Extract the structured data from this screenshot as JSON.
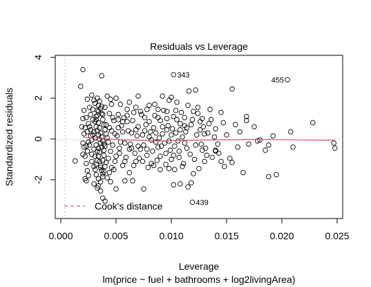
{
  "chart_data": {
    "type": "scatter",
    "title": "Residuals vs Leverage",
    "xlabel": "Leverage",
    "ylabel": "Standardized residuals",
    "sublabel": "lm(price ~ fuel + bathrooms + log2livingArea)",
    "xlim": [
      -0.0005,
      0.0255
    ],
    "ylim": [
      -3.9,
      4.1
    ],
    "x_ticks": [
      0.0,
      0.005,
      0.01,
      0.015,
      0.02,
      0.025
    ],
    "x_tick_labels": [
      "0.000",
      "0.005",
      "0.010",
      "0.015",
      "0.020",
      "0.025"
    ],
    "y_ticks": [
      -2,
      0,
      2,
      4
    ],
    "y_tick_labels": [
      "-2",
      "0",
      "2",
      "4"
    ],
    "grid": false,
    "legend": {
      "position": "bottom-left",
      "entries": [
        {
          "label": "Cook's distance",
          "color": "#DF536B",
          "style": "dashed"
        }
      ]
    },
    "smooth_color": "#DF536B",
    "smooth_line": [
      [
        0.002,
        0.08
      ],
      [
        0.0035,
        0.03
      ],
      [
        0.006,
        -0.05
      ],
      [
        0.009,
        -0.1
      ],
      [
        0.013,
        -0.05
      ],
      [
        0.018,
        -0.02
      ],
      [
        0.0248,
        -0.07
      ]
    ],
    "labeled_points": [
      {
        "label": "343",
        "x": 0.0102,
        "y": 3.15
      },
      {
        "label": "455",
        "x": 0.0205,
        "y": 2.9
      },
      {
        "label": "439",
        "x": 0.0119,
        "y": -3.1
      }
    ],
    "points": [
      [
        0.0102,
        3.15
      ],
      [
        0.0205,
        2.9
      ],
      [
        0.0119,
        -3.1
      ],
      [
        0.002,
        3.4
      ],
      [
        0.0037,
        3.1
      ],
      [
        0.0018,
        2.58
      ],
      [
        0.0024,
        1.95
      ],
      [
        0.0013,
        -1.08
      ],
      [
        0.0022,
        -1.95
      ],
      [
        0.0023,
        -2.05
      ],
      [
        0.0038,
        -2.9
      ],
      [
        0.004,
        -3.05
      ],
      [
        0.0116,
        2.35
      ],
      [
        0.0122,
        2.4
      ],
      [
        0.0145,
        1.3
      ],
      [
        0.0168,
        1.1
      ],
      [
        0.0155,
        2.45
      ],
      [
        0.017,
        -0.25
      ],
      [
        0.0178,
        -0.1
      ],
      [
        0.0185,
        -0.55
      ],
      [
        0.0188,
        -0.3
      ],
      [
        0.0192,
        0.15
      ],
      [
        0.0208,
        0.35
      ],
      [
        0.0228,
        0.8
      ],
      [
        0.0247,
        -0.2
      ],
      [
        0.0248,
        -0.45
      ],
      [
        0.021,
        -0.4
      ],
      [
        0.0165,
        -1.65
      ],
      [
        0.0195,
        -1.75
      ],
      [
        0.0188,
        -1.85
      ],
      [
        0.0155,
        -1.15
      ],
      [
        0.0145,
        -1.1
      ],
      [
        0.014,
        -0.55
      ],
      [
        0.014,
        -0.6
      ],
      [
        0.0128,
        -0.55
      ],
      [
        0.0132,
        -0.8
      ],
      [
        0.013,
        -1.1
      ],
      [
        0.0125,
        -1.45
      ],
      [
        0.012,
        -1.7
      ],
      [
        0.0118,
        -2.15
      ],
      [
        0.0115,
        -2.35
      ],
      [
        0.0108,
        -2.2
      ],
      [
        0.0102,
        -2.25
      ],
      [
        0.009,
        -1.5
      ],
      [
        0.0075,
        -2.45
      ],
      [
        0.0065,
        -2.05
      ],
      [
        0.0135,
        1.45
      ],
      [
        0.014,
        0.5
      ],
      [
        0.0147,
        0.8
      ],
      [
        0.0128,
        1.0
      ],
      [
        0.0133,
        0.3
      ],
      [
        0.0168,
        0.9
      ],
      [
        0.0105,
        1.8
      ],
      [
        0.0098,
        1.9
      ],
      [
        0.0092,
        2.1
      ],
      [
        0.0085,
        1.7
      ],
      [
        0.008,
        1.65
      ],
      [
        0.007,
        2.1
      ],
      [
        0.0062,
        1.8
      ],
      [
        0.0054,
        1.7
      ],
      [
        0.005,
        2.0
      ],
      [
        0.0045,
        1.95
      ],
      [
        0.0042,
        2.1
      ],
      [
        0.0033,
        2.0
      ],
      [
        0.0031,
        1.75
      ],
      [
        0.003,
        1.9
      ],
      [
        0.0028,
        2.15
      ],
      [
        0.0026,
        1.55
      ],
      [
        0.0021,
        1.4
      ],
      [
        0.002,
        1.0
      ],
      [
        0.0019,
        0.6
      ],
      [
        0.0021,
        -0.4
      ],
      [
        0.002,
        -0.75
      ],
      [
        0.0023,
        -1.2
      ],
      [
        0.0024,
        -1.55
      ],
      [
        0.0025,
        -1.8
      ],
      [
        0.003,
        -2.2
      ],
      [
        0.0033,
        -2.4
      ],
      [
        0.0036,
        -2.55
      ],
      [
        0.0034,
        -2.3
      ],
      [
        0.0045,
        -2.1
      ],
      [
        0.005,
        -2.45
      ],
      [
        0.0058,
        -2.05
      ],
      [
        0.0062,
        -1.65
      ],
      [
        0.0056,
        -1.3
      ],
      [
        0.0048,
        -1.5
      ],
      [
        0.0068,
        -1.1
      ],
      [
        0.0072,
        -0.5
      ],
      [
        0.0078,
        -0.8
      ],
      [
        0.0082,
        -1.2
      ],
      [
        0.0088,
        -0.4
      ],
      [
        0.0095,
        -0.7
      ],
      [
        0.01,
        -1.0
      ],
      [
        0.0103,
        -0.35
      ],
      [
        0.0107,
        -0.6
      ],
      [
        0.0112,
        -0.2
      ],
      [
        0.0113,
        0.35
      ],
      [
        0.0108,
        0.75
      ],
      [
        0.0102,
        1.1
      ],
      [
        0.0096,
        0.45
      ],
      [
        0.009,
        0.9
      ],
      [
        0.0084,
        0.55
      ],
      [
        0.0076,
        1.05
      ],
      [
        0.007,
        0.6
      ],
      [
        0.0066,
        1.3
      ],
      [
        0.006,
        0.85
      ],
      [
        0.0056,
        0.35
      ],
      [
        0.0052,
        0.95
      ],
      [
        0.0046,
        0.4
      ],
      [
        0.0044,
        1.25
      ],
      [
        0.0041,
        0.7
      ],
      [
        0.0039,
        -0.55
      ],
      [
        0.0043,
        -0.95
      ],
      [
        0.0047,
        -0.3
      ],
      [
        0.0053,
        -0.7
      ],
      [
        0.0058,
        -0.2
      ],
      [
        0.0064,
        -0.45
      ],
      [
        0.0074,
        0.2
      ],
      [
        0.008,
        0.1
      ],
      [
        0.0086,
        -0.15
      ],
      [
        0.0092,
        0.25
      ],
      [
        0.0098,
        -0.1
      ],
      [
        0.0104,
        0.3
      ],
      [
        0.011,
        0.1
      ],
      [
        0.0118,
        0.7
      ],
      [
        0.0122,
        -0.3
      ],
      [
        0.0126,
        0.45
      ],
      [
        0.012,
        1.35
      ],
      [
        0.0115,
        1.65
      ],
      [
        0.0112,
        1.05
      ],
      [
        0.0136,
        0.95
      ],
      [
        0.0142,
        -0.25
      ],
      [
        0.015,
        0.2
      ],
      [
        0.016,
        -0.4
      ],
      [
        0.0175,
        0.6
      ],
      [
        0.0158,
        0.7
      ],
      [
        0.0148,
        -1.35
      ],
      [
        0.0126,
        0.85
      ],
      [
        0.0124,
        1.25
      ],
      [
        0.0124,
        1.55
      ],
      [
        0.013,
        0.25
      ],
      [
        0.01,
        2.05
      ],
      [
        0.0096,
        1.35
      ],
      [
        0.0088,
        1.45
      ],
      [
        0.0078,
        1.45
      ],
      [
        0.0068,
        1.55
      ],
      [
        0.006,
        1.45
      ],
      [
        0.0052,
        1.2
      ],
      [
        0.0048,
        0.9
      ],
      [
        0.004,
        1.55
      ],
      [
        0.0038,
        1.2
      ],
      [
        0.0034,
        1.65
      ],
      [
        0.0033,
        1.4
      ],
      [
        0.0032,
        1.1
      ],
      [
        0.0031,
        0.85
      ],
      [
        0.0032,
        0.6
      ],
      [
        0.0033,
        0.4
      ],
      [
        0.0034,
        0.2
      ],
      [
        0.0035,
        0.0
      ],
      [
        0.0036,
        -0.2
      ],
      [
        0.0037,
        -0.4
      ],
      [
        0.0035,
        -0.65
      ],
      [
        0.0034,
        -0.85
      ],
      [
        0.0033,
        -1.05
      ],
      [
        0.0032,
        -1.25
      ],
      [
        0.0031,
        -1.5
      ],
      [
        0.0032,
        -1.75
      ],
      [
        0.0034,
        -1.95
      ],
      [
        0.0036,
        -2.1
      ],
      [
        0.0038,
        -1.85
      ],
      [
        0.0039,
        -1.6
      ],
      [
        0.004,
        -1.35
      ],
      [
        0.0041,
        -1.15
      ],
      [
        0.0036,
        -1.3
      ],
      [
        0.0037,
        -1.55
      ],
      [
        0.0035,
        1.85
      ],
      [
        0.0036,
        1.5
      ],
      [
        0.0037,
        1.25
      ],
      [
        0.0038,
        0.95
      ],
      [
        0.0039,
        0.7
      ],
      [
        0.004,
        0.45
      ],
      [
        0.0041,
        0.25
      ],
      [
        0.0042,
        0.05
      ],
      [
        0.0043,
        -0.15
      ],
      [
        0.004,
        -0.35
      ],
      [
        0.0039,
        -0.8
      ],
      [
        0.0038,
        -1.05
      ],
      [
        0.0029,
        0.2
      ],
      [
        0.0028,
        -0.05
      ],
      [
        0.0027,
        0.45
      ],
      [
        0.0026,
        -0.3
      ],
      [
        0.0025,
        0.75
      ],
      [
        0.0024,
        -0.6
      ],
      [
        0.0023,
        1.05
      ],
      [
        0.0022,
        -0.85
      ],
      [
        0.0027,
        1.2
      ],
      [
        0.0028,
        -1.1
      ],
      [
        0.0029,
        1.45
      ],
      [
        0.003,
        -1.35
      ],
      [
        0.0029,
        0.95
      ],
      [
        0.0028,
        -0.75
      ],
      [
        0.0027,
        0.15
      ],
      [
        0.0026,
        0.6
      ],
      [
        0.0025,
        -0.15
      ],
      [
        0.0024,
        0.35
      ],
      [
        0.0023,
        -0.35
      ],
      [
        0.0022,
        0.55
      ],
      [
        0.0021,
        0.25
      ],
      [
        0.002,
        -0.2
      ],
      [
        0.0046,
        1.7
      ],
      [
        0.0049,
        -1.1
      ],
      [
        0.0051,
        0.15
      ],
      [
        0.0053,
        -0.45
      ],
      [
        0.0055,
        0.65
      ],
      [
        0.0057,
        1.05
      ],
      [
        0.0059,
        -0.9
      ],
      [
        0.0061,
        0.4
      ],
      [
        0.0063,
        -0.25
      ],
      [
        0.0065,
        0.9
      ],
      [
        0.0067,
        -0.7
      ],
      [
        0.0069,
        0.15
      ],
      [
        0.0071,
        -0.95
      ],
      [
        0.0073,
        1.2
      ],
      [
        0.0075,
        -0.3
      ],
      [
        0.0077,
        0.7
      ],
      [
        0.0079,
        -1.4
      ],
      [
        0.0081,
        0.35
      ],
      [
        0.0083,
        -0.6
      ],
      [
        0.0085,
        1.15
      ],
      [
        0.0087,
        -1.05
      ],
      [
        0.0089,
        0.05
      ],
      [
        0.0091,
        -0.35
      ],
      [
        0.0093,
        1.4
      ],
      [
        0.0095,
        -1.25
      ],
      [
        0.0097,
        0.65
      ],
      [
        0.0099,
        -0.55
      ],
      [
        0.0101,
        0.5
      ],
      [
        0.0103,
        -1.5
      ],
      [
        0.0105,
        0.95
      ],
      [
        0.0107,
        -0.9
      ],
      [
        0.0109,
        1.3
      ],
      [
        0.0111,
        -1.2
      ],
      [
        0.0114,
        0.55
      ],
      [
        0.0117,
        -0.75
      ],
      [
        0.0119,
        0.95
      ],
      [
        0.0121,
        -1.0
      ],
      [
        0.0123,
        0.2
      ],
      [
        0.0127,
        -0.25
      ],
      [
        0.0129,
        0.6
      ],
      [
        0.0131,
        -0.45
      ],
      [
        0.0134,
        0.75
      ],
      [
        0.0137,
        -0.9
      ],
      [
        0.0139,
        0.1
      ],
      [
        0.0143,
        -0.7
      ],
      [
        0.0153,
        -0.95
      ],
      [
        0.0162,
        0.35
      ],
      [
        0.018,
        -0.05
      ],
      [
        0.0034,
        0.8
      ],
      [
        0.0035,
        0.55
      ],
      [
        0.0036,
        0.3
      ],
      [
        0.0037,
        0.1
      ],
      [
        0.0038,
        -0.1
      ],
      [
        0.0039,
        -0.25
      ],
      [
        0.0034,
        -0.45
      ],
      [
        0.0033,
        -0.6
      ],
      [
        0.0032,
        -0.3
      ],
      [
        0.0031,
        0.05
      ],
      [
        0.003,
        0.35
      ],
      [
        0.003,
        -0.5
      ],
      [
        0.0031,
        -0.85
      ],
      [
        0.0032,
        0.95
      ],
      [
        0.0033,
        1.15
      ],
      [
        0.0034,
        1.35
      ],
      [
        0.0035,
        -1.1
      ],
      [
        0.0036,
        -1.4
      ],
      [
        0.0037,
        1.6
      ],
      [
        0.0038,
        -1.7
      ],
      [
        0.0042,
        -1.9
      ],
      [
        0.0044,
        -1.65
      ],
      [
        0.0046,
        -1.4
      ],
      [
        0.0044,
        0.55
      ],
      [
        0.0045,
        -0.6
      ],
      [
        0.0047,
        1.05
      ],
      [
        0.0049,
        0.25
      ],
      [
        0.005,
        -0.85
      ],
      [
        0.0052,
        0.55
      ],
      [
        0.0054,
        -0.15
      ],
      [
        0.0056,
        0.85
      ],
      [
        0.0058,
        -1.1
      ],
      [
        0.006,
        1.15
      ],
      [
        0.0062,
        -0.5
      ],
      [
        0.0064,
        0.3
      ],
      [
        0.0066,
        -1.3
      ],
      [
        0.0068,
        0.45
      ],
      [
        0.007,
        -0.35
      ],
      [
        0.0072,
        1.35
      ],
      [
        0.0074,
        -1.1
      ],
      [
        0.0076,
        0.4
      ],
      [
        0.0078,
        -0.5
      ],
      [
        0.008,
        0.85
      ],
      [
        0.0082,
        -0.05
      ],
      [
        0.0084,
        -1.3
      ],
      [
        0.0086,
        0.3
      ],
      [
        0.0088,
        1.05
      ],
      [
        0.009,
        -0.85
      ],
      [
        0.0092,
        0.6
      ],
      [
        0.0094,
        -0.2
      ],
      [
        0.0096,
        1.0
      ],
      [
        0.0098,
        -1.45
      ],
      [
        0.01,
        0.2
      ],
      [
        0.0102,
        -0.8
      ],
      [
        0.0104,
        1.4
      ],
      [
        0.0106,
        -0.1
      ],
      [
        0.0108,
        0.45
      ],
      [
        0.011,
        -1.35
      ],
      [
        0.0112,
        0.65
      ],
      [
        0.0114,
        -0.45
      ]
    ]
  }
}
